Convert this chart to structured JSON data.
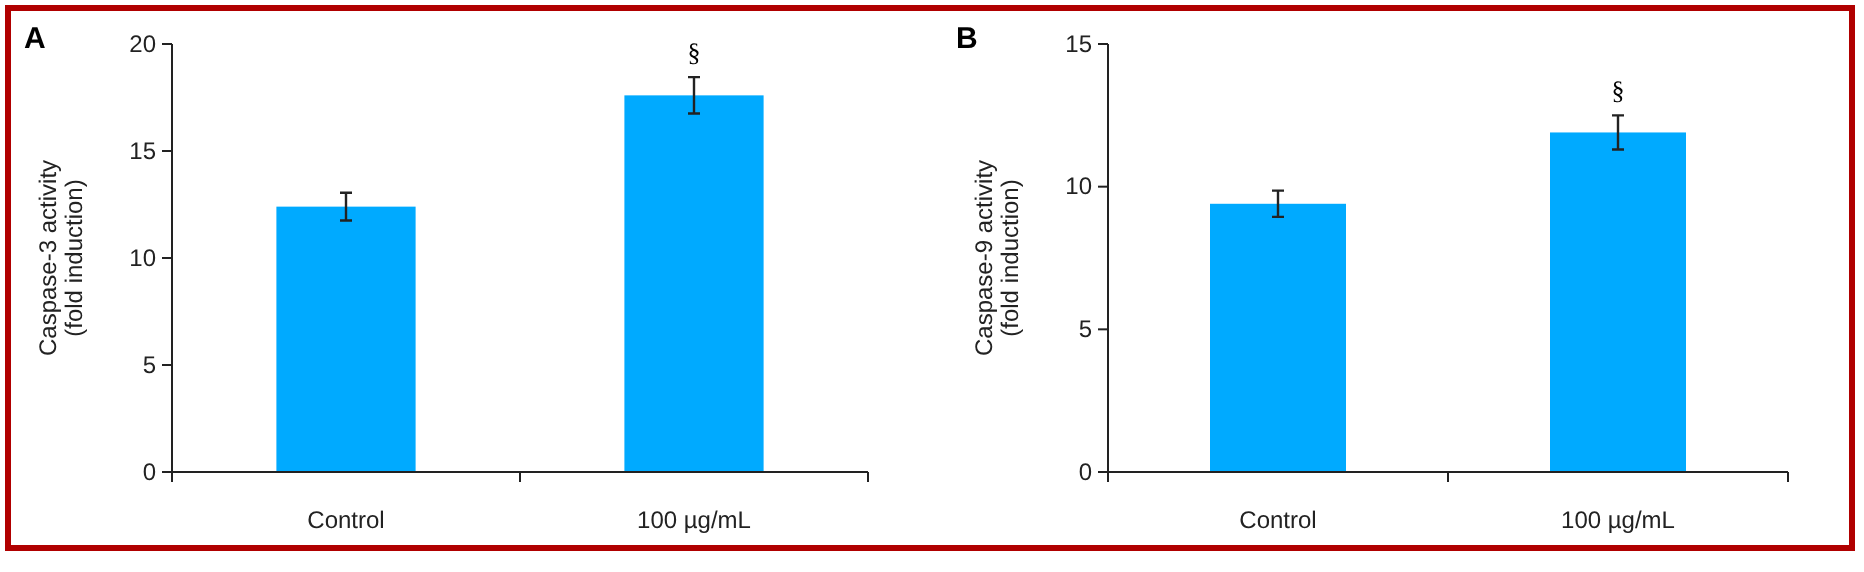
{
  "chart_data": [
    {
      "type": "bar",
      "title": "A",
      "ylabel": "Caspase-3 activity\n(fold induction)",
      "categories": [
        "Control",
        "100 µg/mL"
      ],
      "values": [
        12.4,
        17.6
      ],
      "errors": [
        0.65,
        0.85
      ],
      "color": "#00aaff",
      "ylim": [
        0,
        20
      ],
      "yticks": [
        0,
        5,
        10,
        15,
        20
      ],
      "grid": false,
      "annotations": [
        "§"
      ]
    },
    {
      "type": "bar",
      "title": "B",
      "ylabel": "Caspase-9 activity\n(fold induction)",
      "categories": [
        "Control",
        "100 µg/mL"
      ],
      "values": [
        9.4,
        11.9
      ],
      "errors": [
        0.46,
        0.6
      ],
      "color": "#00aaff",
      "ylim": [
        0,
        15
      ],
      "yticks": [
        0,
        5,
        10,
        15
      ],
      "grid": false,
      "annotations": [
        "§"
      ]
    }
  ]
}
